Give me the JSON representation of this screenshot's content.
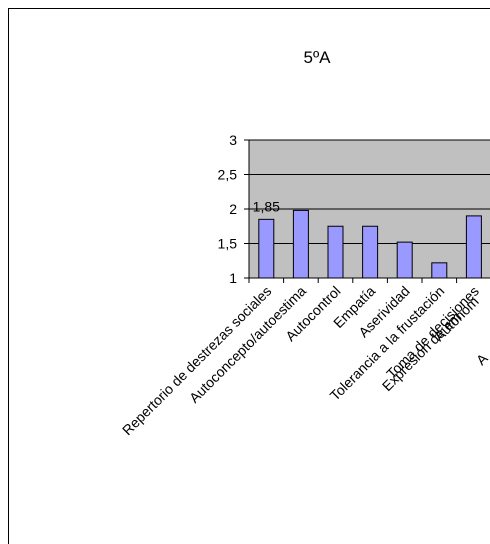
{
  "chart_data": {
    "type": "bar",
    "title": "5ºA",
    "categories": [
      "Repertorio de destrezas sociales",
      "Autoconcepto/autoestima",
      "Autocontrol",
      "Empatía",
      "Aserividad",
      "Tolerancia a la frustación",
      "Toma de decisiones",
      "Autonom",
      "Expresión de em",
      "A"
    ],
    "values": [
      1.85,
      1.98,
      1.75,
      1.75,
      1.52,
      1.22,
      1.9,
      null,
      null,
      null
    ],
    "value_labels": [
      "1,85",
      null,
      null,
      null,
      null,
      null,
      null,
      null,
      null,
      null
    ],
    "color": "#9999ff",
    "ylim": [
      1,
      3
    ],
    "yticks": [
      1,
      {
        "value": 1.5,
        "label": "1,5"
      },
      2,
      {
        "value": 2.5,
        "label": "2,5"
      },
      3
    ],
    "grid": true
  }
}
